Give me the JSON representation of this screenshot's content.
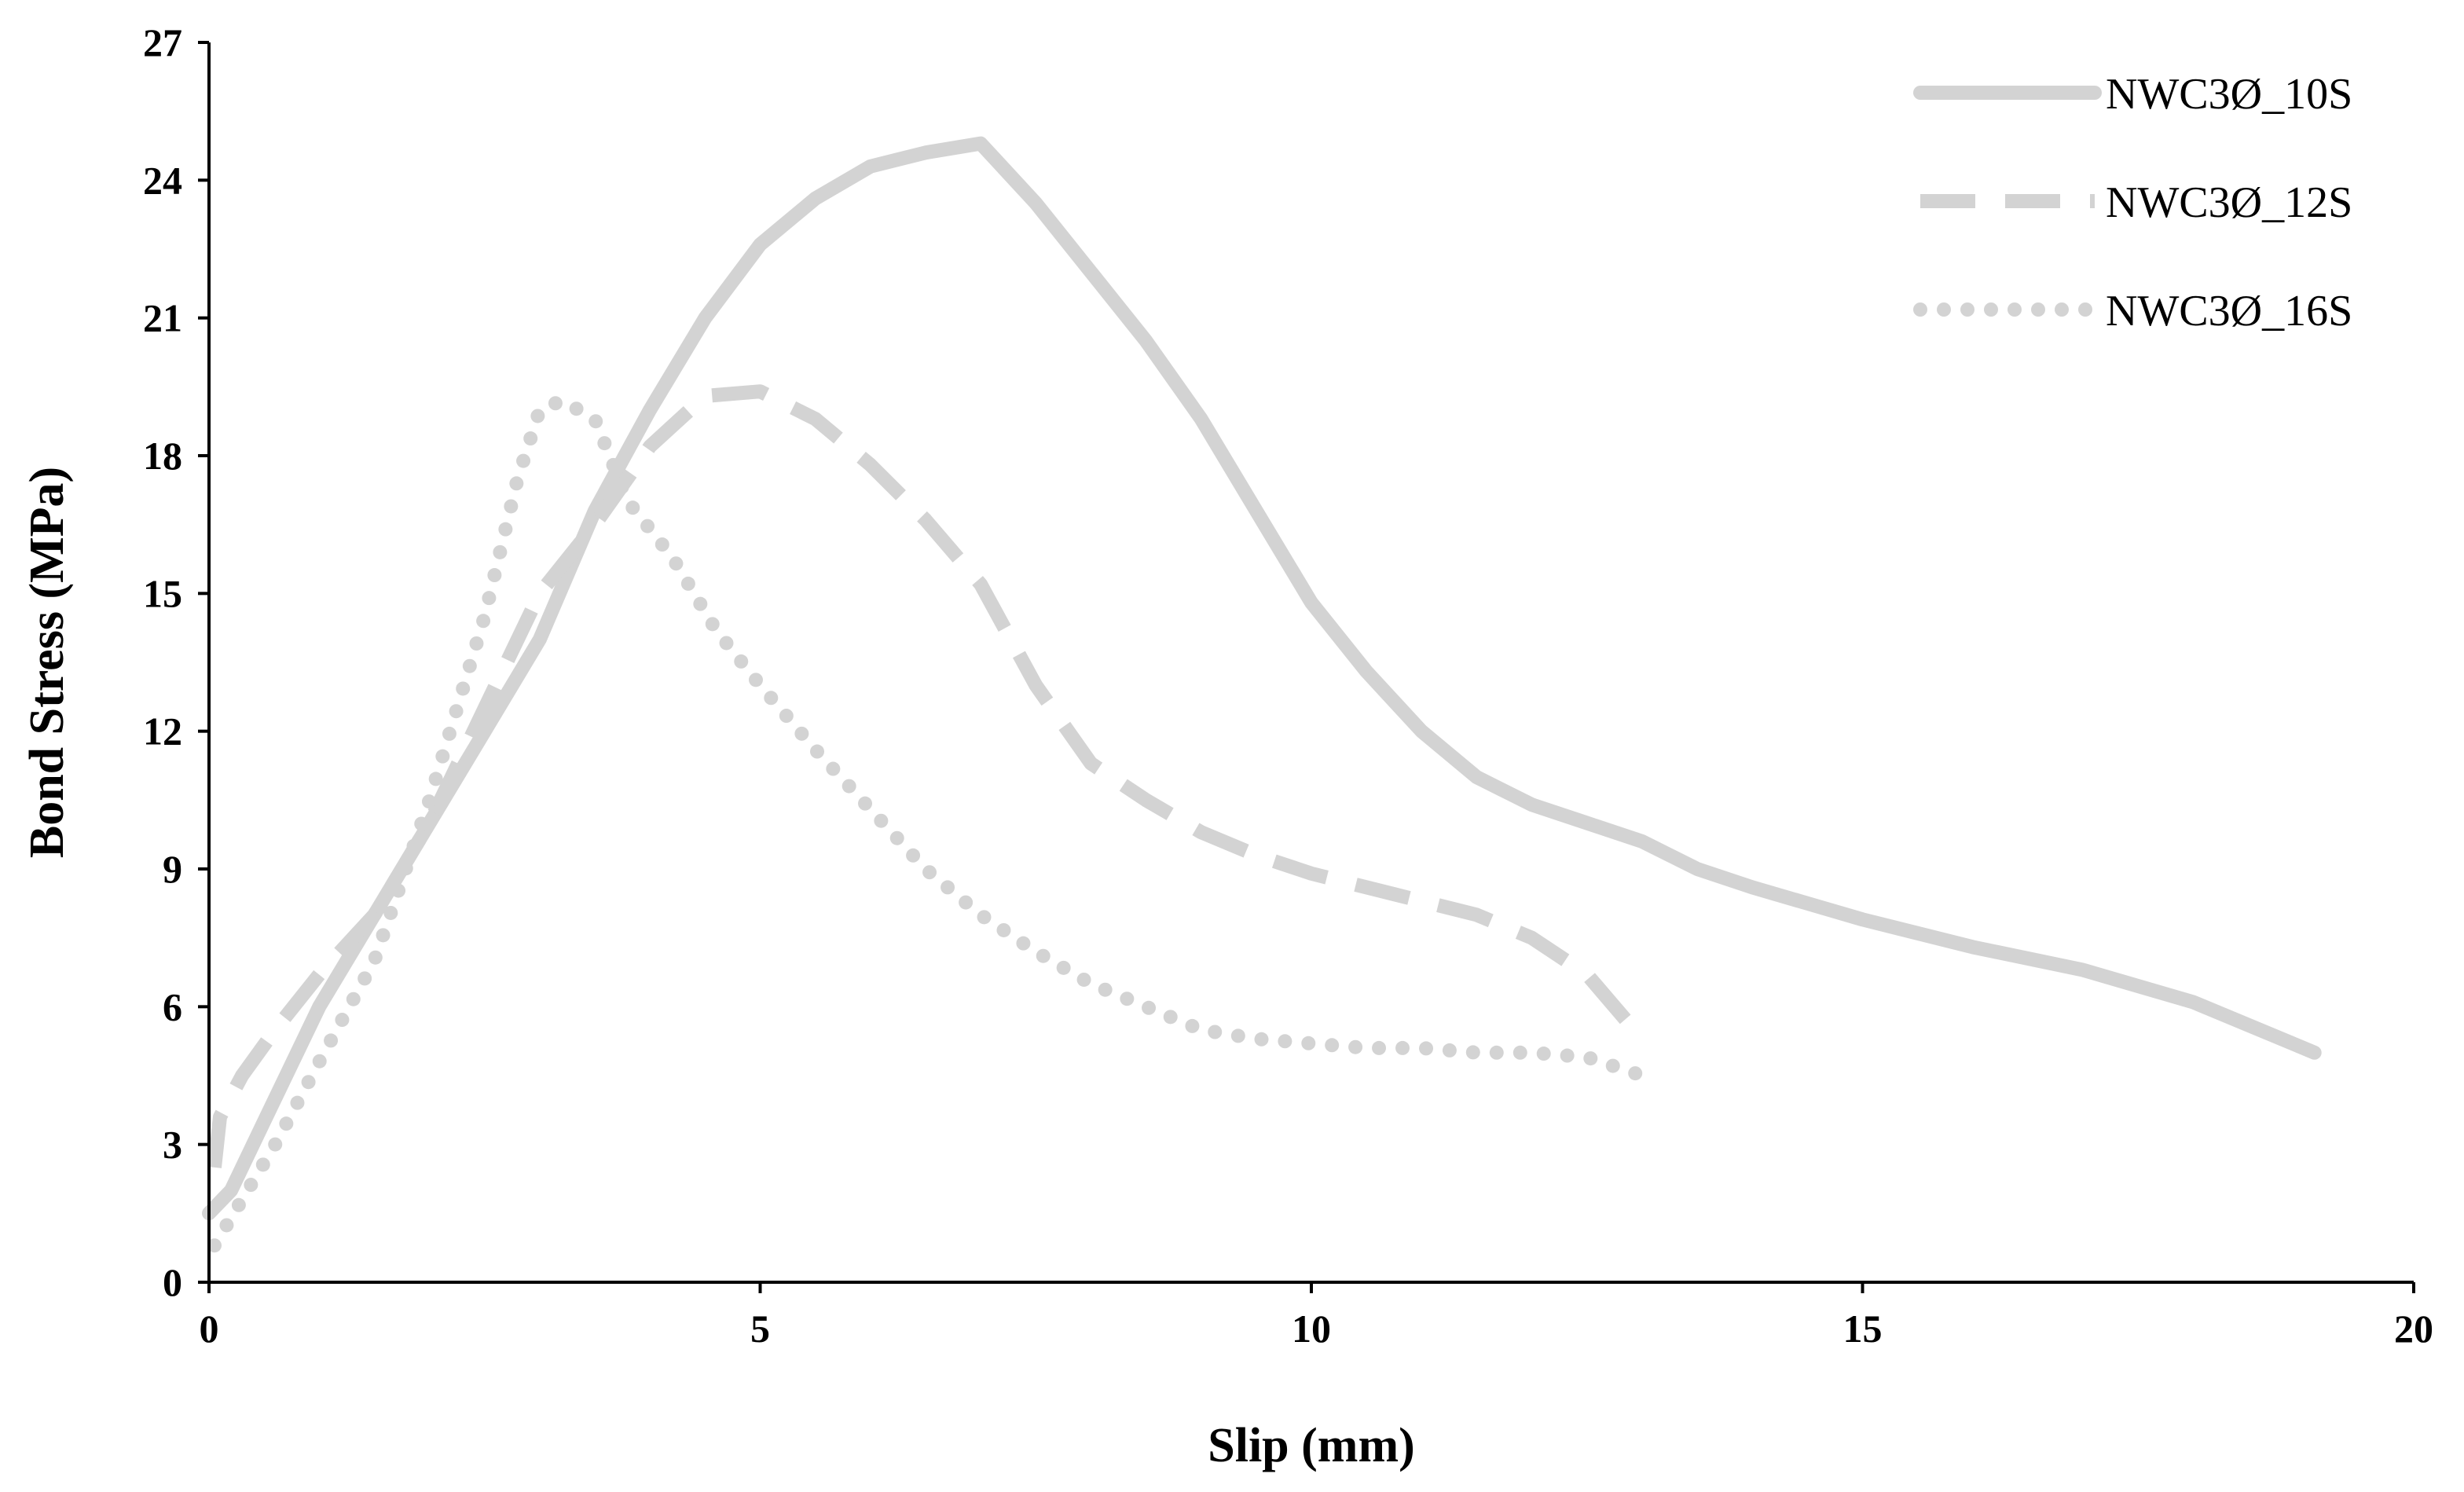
{
  "chart_data": {
    "type": "line",
    "title": "",
    "xlabel": "Slip (mm)",
    "ylabel": "Bond Stress (MPa)",
    "xlim": [
      0,
      20
    ],
    "ylim": [
      0,
      27
    ],
    "xticks": [
      0,
      5,
      10,
      15,
      20
    ],
    "yticks": [
      0,
      3,
      6,
      9,
      12,
      15,
      18,
      21,
      24,
      27
    ],
    "grid": false,
    "legend_position": "top-right",
    "line_color": "#d3d3d3",
    "series": [
      {
        "name": "NWC3Ø_10S",
        "style": "solid",
        "x": [
          0,
          0.2,
          0.5,
          1.0,
          1.5,
          2.0,
          2.5,
          3.0,
          3.5,
          4.0,
          4.5,
          5.0,
          5.5,
          6.0,
          6.5,
          7.0,
          7.5,
          8.0,
          8.5,
          9.0,
          9.5,
          10.0,
          10.5,
          11.0,
          11.5,
          12.0,
          12.5,
          13.0,
          13.5,
          14.0,
          15.0,
          16.0,
          17.0,
          18.0,
          19.1
        ],
        "y": [
          1.5,
          2.0,
          3.5,
          6.0,
          8.0,
          10.0,
          12.0,
          14.0,
          16.8,
          19.0,
          21.0,
          22.6,
          23.6,
          24.3,
          24.6,
          24.8,
          23.5,
          22.0,
          20.5,
          18.8,
          16.8,
          14.8,
          13.3,
          12.0,
          11.0,
          10.4,
          10.0,
          9.6,
          9.0,
          8.6,
          7.9,
          7.3,
          6.8,
          6.1,
          5.0
        ]
      },
      {
        "name": "NWC3Ø_12S",
        "style": "dashed",
        "x": [
          0.05,
          0.1,
          0.3,
          0.6,
          1.0,
          1.5,
          2.0,
          2.5,
          3.0,
          3.5,
          4.0,
          4.5,
          5.0,
          5.5,
          6.0,
          6.5,
          7.0,
          7.5,
          8.0,
          8.5,
          9.0,
          9.5,
          10.0,
          10.5,
          11.0,
          11.5,
          12.0,
          12.5,
          13.0
        ],
        "y": [
          2.5,
          3.6,
          4.5,
          5.5,
          6.7,
          8.0,
          10.0,
          12.5,
          15.0,
          16.5,
          18.2,
          19.3,
          19.4,
          18.8,
          17.8,
          16.6,
          15.2,
          13.0,
          11.3,
          10.5,
          9.8,
          9.3,
          8.9,
          8.6,
          8.3,
          8.0,
          7.5,
          6.7,
          5.3
        ]
      },
      {
        "name": "NWC3Ø_16S",
        "style": "dotted",
        "x": [
          0.05,
          0.3,
          0.6,
          1.0,
          1.5,
          2.0,
          2.5,
          2.8,
          3.0,
          3.2,
          3.5,
          3.8,
          4.2,
          4.6,
          5.0,
          5.5,
          6.0,
          6.5,
          7.0,
          7.5,
          8.0,
          8.5,
          9.0,
          9.5,
          10.0,
          10.5,
          11.0,
          11.5,
          12.0,
          12.5,
          13.0
        ],
        "y": [
          0.8,
          1.8,
          3.0,
          4.8,
          7.0,
          10.5,
          14.5,
          17.5,
          19.0,
          19.2,
          18.8,
          17.0,
          15.8,
          14.2,
          13.0,
          11.6,
          10.3,
          9.0,
          8.0,
          7.2,
          6.5,
          6.0,
          5.5,
          5.3,
          5.2,
          5.1,
          5.1,
          5.0,
          5.0,
          4.9,
          4.5
        ]
      }
    ]
  }
}
